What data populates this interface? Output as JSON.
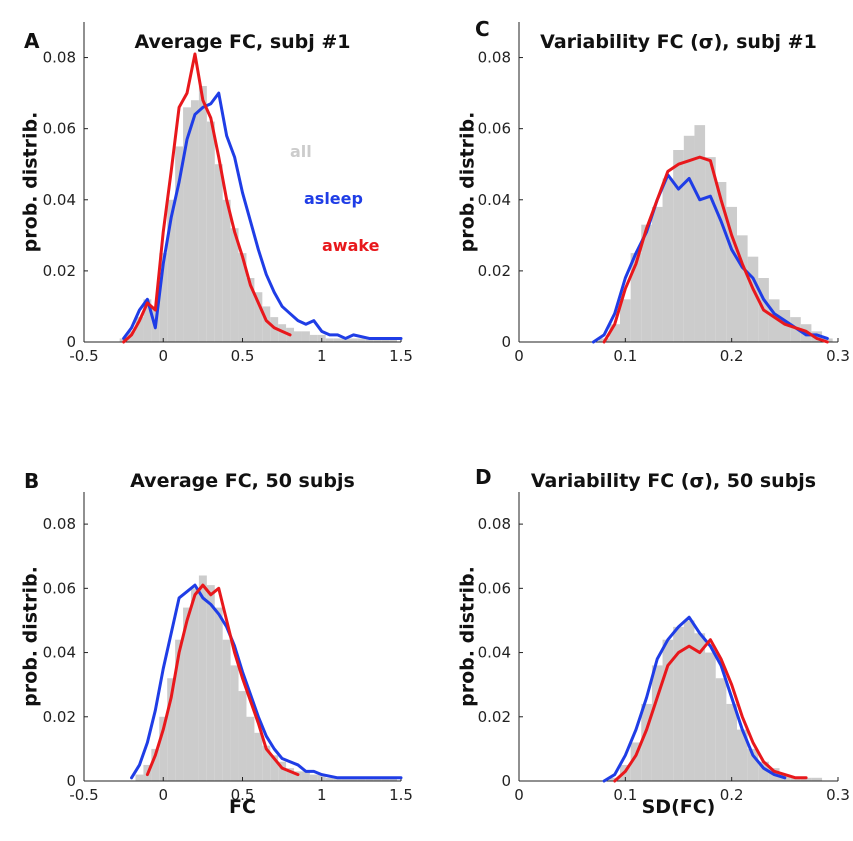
{
  "colors": {
    "all": "#cccccc",
    "asleep": "#1f3de6",
    "awake": "#e8181c",
    "axis": "#222222"
  },
  "chart_data": [
    {
      "panel": "A",
      "type": "area",
      "title": "Average FC, subj #1",
      "xlabel": "",
      "ylabel": "prob. distrib.",
      "xlim": [
        -0.5,
        1.5
      ],
      "ylim": [
        0,
        0.09
      ],
      "xticks": [
        -0.5,
        0,
        0.5,
        1,
        1.5
      ],
      "xtick_labels": [
        "-0.5",
        "0",
        "0.5",
        "1",
        "1.5"
      ],
      "yticks": [
        0,
        0.02,
        0.04,
        0.06,
        0.08
      ],
      "ytick_labels": [
        "0",
        "0.02",
        "0.04",
        "0.06",
        "0.08"
      ],
      "legend": [
        {
          "label": "all",
          "series": "all"
        },
        {
          "label": "asleep",
          "series": "asleep"
        },
        {
          "label": "awake",
          "series": "awake"
        }
      ],
      "series": [
        {
          "name": "all",
          "kind": "histogram",
          "x": [
            -0.25,
            -0.2,
            -0.15,
            -0.1,
            -0.05,
            0,
            0.05,
            0.1,
            0.15,
            0.2,
            0.25,
            0.3,
            0.35,
            0.4,
            0.45,
            0.5,
            0.55,
            0.6,
            0.65,
            0.7,
            0.75,
            0.8,
            0.85,
            0.9,
            0.95,
            1.0,
            1.05,
            1.1,
            1.15,
            1.2,
            1.25,
            1.3,
            1.35,
            1.4,
            1.45
          ],
          "y": [
            0.001,
            0.003,
            0.007,
            0.012,
            0.01,
            0.025,
            0.04,
            0.055,
            0.066,
            0.068,
            0.072,
            0.062,
            0.05,
            0.04,
            0.032,
            0.025,
            0.018,
            0.014,
            0.01,
            0.007,
            0.005,
            0.004,
            0.003,
            0.003,
            0.002,
            0.002,
            0.001,
            0.001,
            0.001,
            0.001,
            0.001,
            0.001,
            0.001,
            0.001,
            0.001
          ]
        },
        {
          "name": "asleep",
          "kind": "line",
          "x": [
            -0.25,
            -0.2,
            -0.15,
            -0.1,
            -0.05,
            0,
            0.05,
            0.1,
            0.15,
            0.2,
            0.25,
            0.3,
            0.35,
            0.4,
            0.45,
            0.5,
            0.55,
            0.6,
            0.65,
            0.7,
            0.75,
            0.8,
            0.85,
            0.9,
            0.95,
            1.0,
            1.05,
            1.1,
            1.15,
            1.2,
            1.3,
            1.4,
            1.5
          ],
          "y": [
            0.001,
            0.004,
            0.009,
            0.012,
            0.004,
            0.022,
            0.035,
            0.045,
            0.057,
            0.064,
            0.066,
            0.067,
            0.07,
            0.058,
            0.052,
            0.042,
            0.034,
            0.026,
            0.019,
            0.014,
            0.01,
            0.008,
            0.006,
            0.005,
            0.006,
            0.003,
            0.002,
            0.002,
            0.001,
            0.002,
            0.001,
            0.001,
            0.001
          ]
        },
        {
          "name": "awake",
          "kind": "line",
          "x": [
            -0.25,
            -0.2,
            -0.15,
            -0.1,
            -0.05,
            0,
            0.05,
            0.1,
            0.15,
            0.2,
            0.25,
            0.3,
            0.35,
            0.4,
            0.45,
            0.5,
            0.55,
            0.6,
            0.65,
            0.7,
            0.75,
            0.8
          ],
          "y": [
            0.0,
            0.002,
            0.006,
            0.011,
            0.009,
            0.031,
            0.048,
            0.066,
            0.07,
            0.081,
            0.068,
            0.063,
            0.052,
            0.04,
            0.031,
            0.024,
            0.016,
            0.011,
            0.006,
            0.004,
            0.003,
            0.002
          ]
        }
      ]
    },
    {
      "panel": "C",
      "type": "area",
      "title": "Variability FC (σ), subj #1",
      "xlabel": "",
      "ylabel": "prob. distrib.",
      "xlim": [
        0,
        0.3
      ],
      "ylim": [
        0,
        0.09
      ],
      "xticks": [
        0,
        0.1,
        0.2,
        0.3
      ],
      "xtick_labels": [
        "0",
        "0.1",
        "0.2",
        "0.3"
      ],
      "yticks": [
        0,
        0.02,
        0.04,
        0.06,
        0.08
      ],
      "ytick_labels": [
        "0",
        "0.02",
        "0.04",
        "0.06",
        "0.08"
      ],
      "series": [
        {
          "name": "all",
          "kind": "histogram",
          "x": [
            0.08,
            0.09,
            0.1,
            0.11,
            0.12,
            0.13,
            0.14,
            0.15,
            0.16,
            0.17,
            0.18,
            0.19,
            0.2,
            0.21,
            0.22,
            0.23,
            0.24,
            0.25,
            0.26,
            0.27,
            0.28,
            0.29
          ],
          "y": [
            0.001,
            0.005,
            0.012,
            0.025,
            0.033,
            0.038,
            0.046,
            0.054,
            0.058,
            0.061,
            0.052,
            0.045,
            0.038,
            0.03,
            0.024,
            0.018,
            0.012,
            0.009,
            0.007,
            0.005,
            0.003,
            0.001
          ]
        },
        {
          "name": "asleep",
          "kind": "line",
          "x": [
            0.07,
            0.08,
            0.09,
            0.1,
            0.11,
            0.12,
            0.13,
            0.14,
            0.15,
            0.16,
            0.17,
            0.18,
            0.19,
            0.2,
            0.21,
            0.22,
            0.23,
            0.24,
            0.25,
            0.26,
            0.27,
            0.28,
            0.29
          ],
          "y": [
            0.0,
            0.002,
            0.008,
            0.018,
            0.025,
            0.031,
            0.04,
            0.047,
            0.043,
            0.046,
            0.04,
            0.041,
            0.034,
            0.026,
            0.021,
            0.018,
            0.012,
            0.008,
            0.006,
            0.004,
            0.002,
            0.002,
            0.001
          ]
        },
        {
          "name": "awake",
          "kind": "line",
          "x": [
            0.08,
            0.09,
            0.1,
            0.11,
            0.12,
            0.13,
            0.14,
            0.15,
            0.16,
            0.17,
            0.18,
            0.19,
            0.2,
            0.21,
            0.22,
            0.23,
            0.24,
            0.25,
            0.26,
            0.27,
            0.28,
            0.29
          ],
          "y": [
            0.0,
            0.005,
            0.015,
            0.022,
            0.032,
            0.04,
            0.048,
            0.05,
            0.051,
            0.052,
            0.051,
            0.04,
            0.03,
            0.022,
            0.015,
            0.009,
            0.007,
            0.005,
            0.004,
            0.003,
            0.001,
            0.0
          ]
        }
      ]
    },
    {
      "panel": "B",
      "type": "area",
      "title": "Average FC, 50 subjs",
      "xlabel": "FC",
      "ylabel": "prob. distrib.",
      "xlim": [
        -0.5,
        1.5
      ],
      "ylim": [
        0,
        0.09
      ],
      "xticks": [
        -0.5,
        0,
        0.5,
        1,
        1.5
      ],
      "xtick_labels": [
        "-0.5",
        "0",
        "0.5",
        "1",
        "1.5"
      ],
      "yticks": [
        0,
        0.02,
        0.04,
        0.06,
        0.08
      ],
      "ytick_labels": [
        "0",
        "0.02",
        "0.04",
        "0.06",
        "0.08"
      ],
      "series": [
        {
          "name": "all",
          "kind": "histogram",
          "x": [
            -0.15,
            -0.1,
            -0.05,
            0,
            0.05,
            0.1,
            0.15,
            0.2,
            0.25,
            0.3,
            0.35,
            0.4,
            0.45,
            0.5,
            0.55,
            0.6,
            0.65,
            0.7,
            0.75,
            0.8,
            0.85,
            0.9,
            0.95,
            1.0,
            1.05,
            1.1,
            1.15,
            1.2,
            1.25,
            1.3,
            1.35,
            1.4,
            1.45
          ],
          "y": [
            0.002,
            0.005,
            0.01,
            0.02,
            0.032,
            0.044,
            0.054,
            0.06,
            0.064,
            0.061,
            0.054,
            0.044,
            0.036,
            0.028,
            0.02,
            0.015,
            0.011,
            0.008,
            0.006,
            0.004,
            0.003,
            0.003,
            0.002,
            0.002,
            0.001,
            0.001,
            0.001,
            0.001,
            0.001,
            0.001,
            0.001,
            0.001,
            0.001
          ]
        },
        {
          "name": "asleep",
          "kind": "line",
          "x": [
            -0.2,
            -0.15,
            -0.1,
            -0.05,
            0,
            0.05,
            0.1,
            0.15,
            0.2,
            0.25,
            0.3,
            0.35,
            0.4,
            0.45,
            0.5,
            0.55,
            0.6,
            0.65,
            0.7,
            0.75,
            0.8,
            0.85,
            0.9,
            0.95,
            1.0,
            1.1,
            1.2,
            1.3,
            1.4,
            1.5
          ],
          "y": [
            0.001,
            0.005,
            0.012,
            0.022,
            0.035,
            0.046,
            0.057,
            0.059,
            0.061,
            0.057,
            0.055,
            0.052,
            0.048,
            0.042,
            0.034,
            0.027,
            0.02,
            0.014,
            0.01,
            0.007,
            0.006,
            0.005,
            0.003,
            0.003,
            0.002,
            0.001,
            0.001,
            0.001,
            0.001,
            0.001
          ]
        },
        {
          "name": "awake",
          "kind": "line",
          "x": [
            -0.1,
            -0.05,
            0,
            0.05,
            0.1,
            0.15,
            0.2,
            0.25,
            0.3,
            0.35,
            0.4,
            0.45,
            0.5,
            0.55,
            0.6,
            0.65,
            0.7,
            0.75,
            0.8,
            0.85
          ],
          "y": [
            0.002,
            0.008,
            0.016,
            0.026,
            0.04,
            0.05,
            0.058,
            0.061,
            0.058,
            0.06,
            0.05,
            0.04,
            0.032,
            0.025,
            0.018,
            0.01,
            0.007,
            0.004,
            0.003,
            0.002
          ]
        }
      ]
    },
    {
      "panel": "D",
      "type": "area",
      "title": "Variability FC (σ), 50 subjs",
      "xlabel": "SD(FC)",
      "ylabel": "prob. distrib.",
      "xlim": [
        0,
        0.3
      ],
      "ylim": [
        0,
        0.09
      ],
      "xticks": [
        0,
        0.1,
        0.2,
        0.3
      ],
      "xtick_labels": [
        "0",
        "0.1",
        "0.2",
        "0.3"
      ],
      "yticks": [
        0,
        0.02,
        0.04,
        0.06,
        0.08
      ],
      "ytick_labels": [
        "0",
        "0.02",
        "0.04",
        "0.06",
        "0.08"
      ],
      "series": [
        {
          "name": "all",
          "kind": "histogram",
          "x": [
            0.09,
            0.1,
            0.11,
            0.12,
            0.13,
            0.14,
            0.15,
            0.16,
            0.17,
            0.18,
            0.19,
            0.2,
            0.21,
            0.22,
            0.23,
            0.24,
            0.25,
            0.26,
            0.27,
            0.28
          ],
          "y": [
            0.001,
            0.005,
            0.012,
            0.024,
            0.036,
            0.044,
            0.048,
            0.05,
            0.046,
            0.04,
            0.032,
            0.024,
            0.016,
            0.01,
            0.006,
            0.004,
            0.002,
            0.001,
            0.001,
            0.001
          ]
        },
        {
          "name": "asleep",
          "kind": "line",
          "x": [
            0.08,
            0.09,
            0.1,
            0.11,
            0.12,
            0.13,
            0.14,
            0.15,
            0.16,
            0.17,
            0.18,
            0.19,
            0.2,
            0.21,
            0.22,
            0.23,
            0.24,
            0.25
          ],
          "y": [
            0.0,
            0.002,
            0.008,
            0.016,
            0.026,
            0.038,
            0.044,
            0.048,
            0.051,
            0.046,
            0.042,
            0.036,
            0.026,
            0.016,
            0.008,
            0.004,
            0.002,
            0.001
          ]
        },
        {
          "name": "awake",
          "kind": "line",
          "x": [
            0.09,
            0.1,
            0.11,
            0.12,
            0.13,
            0.14,
            0.15,
            0.16,
            0.17,
            0.18,
            0.19,
            0.2,
            0.21,
            0.22,
            0.23,
            0.24,
            0.25,
            0.26,
            0.27
          ],
          "y": [
            0.0,
            0.003,
            0.008,
            0.016,
            0.026,
            0.036,
            0.04,
            0.042,
            0.04,
            0.044,
            0.038,
            0.03,
            0.02,
            0.012,
            0.006,
            0.003,
            0.002,
            0.001,
            0.001
          ]
        }
      ]
    }
  ]
}
